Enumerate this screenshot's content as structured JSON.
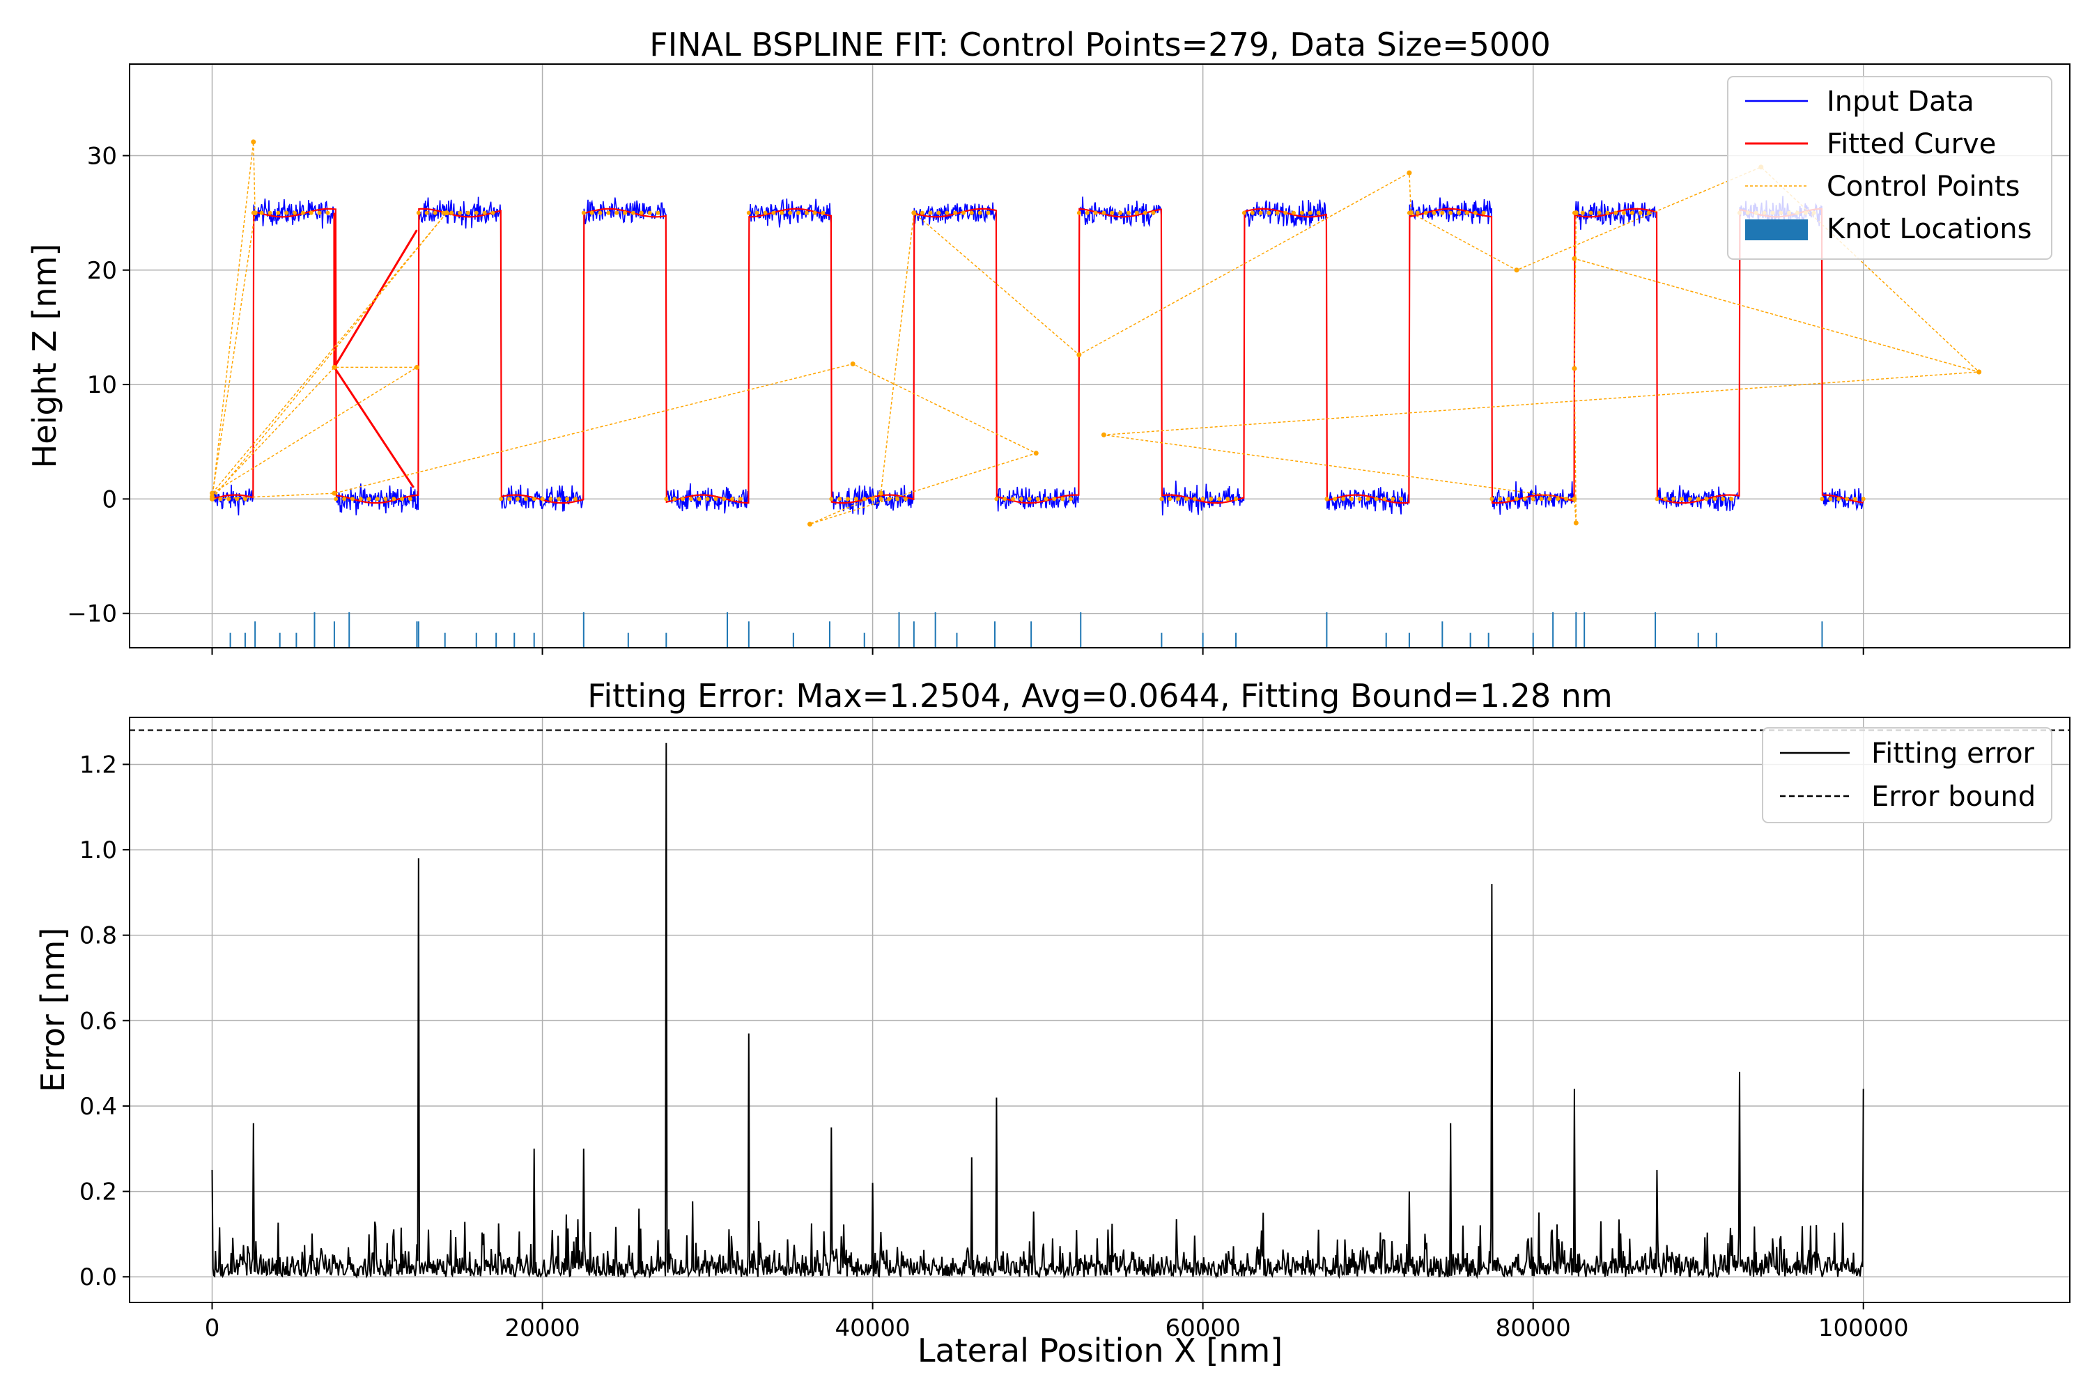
{
  "chart_data": [
    {
      "type": "line",
      "title": "FINAL BSPLINE FIT: Control Points=279, Data Size=5000",
      "xlabel": "",
      "ylabel": "Height Z [nm]",
      "xlim": [
        -5000,
        112500
      ],
      "ylim": [
        -13,
        38
      ],
      "xticks": [
        0,
        20000,
        40000,
        60000,
        80000,
        100000
      ],
      "yticks": [
        -10,
        0,
        10,
        20,
        30
      ],
      "ytick_labels": [
        "−10",
        "0",
        "10",
        "20",
        "30"
      ],
      "grid": true,
      "legend_position": "top-right",
      "square_wave": {
        "period": 10000,
        "high_start": 2500,
        "high_end": 7500,
        "x_end": 100000,
        "low": 0,
        "high": 25,
        "noise_amplitude": 1.2
      },
      "series": [
        {
          "name": "Input Data",
          "color": "#0000ff"
        },
        {
          "name": "Fitted Curve",
          "color": "#ff0000",
          "excursions": [
            [
              7400,
              11.5
            ],
            [
              12200,
              1.0
            ],
            [
              7400,
              11.5
            ],
            [
              12400,
              23.5
            ]
          ]
        },
        {
          "name": "Control Points",
          "color": "#ffa500",
          "points": [
            [
              0,
              0
            ],
            [
              2500,
              31.2
            ],
            [
              2600,
              25
            ],
            [
              0,
              0.2
            ],
            [
              7400,
              11.5
            ],
            [
              12400,
              11.5
            ],
            [
              0,
              0.5
            ],
            [
              14200,
              25
            ],
            [
              0,
              0
            ],
            [
              7400,
              0.5
            ],
            [
              38800,
              11.8
            ],
            [
              49900,
              4
            ],
            [
              36200,
              -2.2
            ],
            [
              40500,
              0.5
            ],
            [
              42500,
              25
            ],
            [
              52500,
              12.6
            ],
            [
              72500,
              28.5
            ],
            [
              72600,
              25
            ],
            [
              79000,
              20
            ],
            [
              93800,
              29
            ],
            [
              107000,
              11.1
            ],
            [
              82500,
              21
            ],
            [
              107000,
              11.1
            ],
            [
              54000,
              5.6
            ],
            [
              82500,
              0
            ],
            [
              82600,
              -2.1
            ],
            [
              82500,
              11.4
            ],
            [
              82600,
              25
            ]
          ]
        },
        {
          "name": "Knot Locations",
          "color": "#1f77b4",
          "knots": [
            [
              1100,
              1
            ],
            [
              2000,
              1
            ],
            [
              2600,
              2
            ],
            [
              4100,
              1
            ],
            [
              5100,
              1
            ],
            [
              6200,
              3
            ],
            [
              7400,
              2
            ],
            [
              8300,
              3
            ],
            [
              12400,
              2
            ],
            [
              12500,
              2
            ],
            [
              14100,
              1
            ],
            [
              16000,
              1
            ],
            [
              17200,
              1
            ],
            [
              18300,
              1
            ],
            [
              19500,
              1
            ],
            [
              22500,
              3
            ],
            [
              25200,
              1
            ],
            [
              27500,
              1
            ],
            [
              31200,
              3
            ],
            [
              32500,
              2
            ],
            [
              35200,
              1
            ],
            [
              37400,
              2
            ],
            [
              39500,
              1
            ],
            [
              41600,
              3
            ],
            [
              42500,
              2
            ],
            [
              43800,
              3
            ],
            [
              45100,
              1
            ],
            [
              47400,
              2
            ],
            [
              49600,
              2
            ],
            [
              52600,
              3
            ],
            [
              57500,
              1
            ],
            [
              60000,
              1
            ],
            [
              62000,
              1
            ],
            [
              67500,
              3
            ],
            [
              71100,
              1
            ],
            [
              72500,
              1
            ],
            [
              74500,
              2
            ],
            [
              76200,
              1
            ],
            [
              77300,
              1
            ],
            [
              80000,
              1
            ],
            [
              81200,
              3
            ],
            [
              82600,
              3
            ],
            [
              83100,
              3
            ],
            [
              87400,
              3
            ],
            [
              90000,
              1
            ],
            [
              91100,
              1
            ],
            [
              97500,
              2
            ]
          ]
        }
      ]
    },
    {
      "type": "line",
      "title": "Fitting Error: Max=1.2504, Avg=0.0644, Fitting Bound=1.28 nm",
      "xlabel": "Lateral Position X [nm]",
      "ylabel": "Error [nm]",
      "xlim": [
        -5000,
        112500
      ],
      "ylim": [
        -0.06,
        1.31
      ],
      "xticks": [
        0,
        20000,
        40000,
        60000,
        80000,
        100000
      ],
      "yticks": [
        0.0,
        0.2,
        0.4,
        0.6,
        0.8,
        1.0,
        1.2
      ],
      "ytick_labels": [
        "0.0",
        "0.2",
        "0.4",
        "0.6",
        "0.8",
        "1.0",
        "1.2"
      ],
      "grid": true,
      "legend_position": "top-right",
      "series": [
        {
          "name": "Fitting error",
          "color": "#000000",
          "spikes": [
            [
              0,
              0.25
            ],
            [
              2500,
              0.36
            ],
            [
              12500,
              0.98
            ],
            [
              19500,
              0.3
            ],
            [
              22500,
              0.3
            ],
            [
              27500,
              1.25
            ],
            [
              32500,
              0.57
            ],
            [
              37500,
              0.35
            ],
            [
              40000,
              0.22
            ],
            [
              46000,
              0.28
            ],
            [
              47500,
              0.42
            ],
            [
              72500,
              0.2
            ],
            [
              75000,
              0.36
            ],
            [
              77500,
              0.92
            ],
            [
              82500,
              0.44
            ],
            [
              87500,
              0.25
            ],
            [
              92500,
              0.48
            ],
            [
              100000,
              0.44
            ]
          ]
        },
        {
          "name": "Error bound",
          "color": "#000000",
          "value": 1.28
        }
      ]
    }
  ]
}
